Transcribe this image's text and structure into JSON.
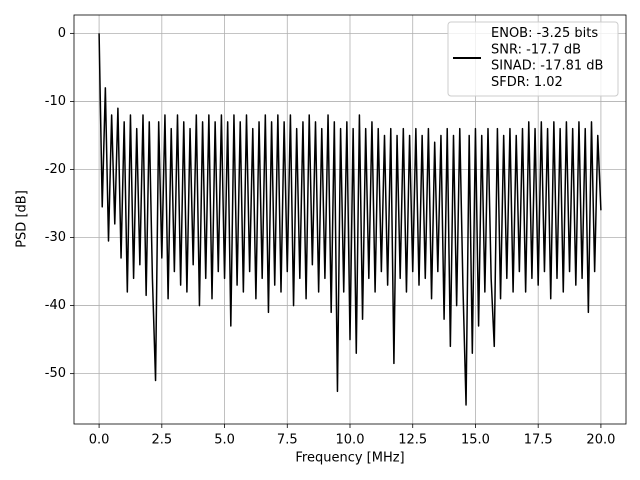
{
  "chart_data": {
    "type": "line",
    "xlabel": "Frequency [MHz]",
    "ylabel": "PSD [dB]",
    "xlim": [
      -1,
      21
    ],
    "ylim": [
      -57.4,
      2.7
    ],
    "xticks": [
      {
        "value": 0,
        "label": "0.0"
      },
      {
        "value": 2.5,
        "label": "2.5"
      },
      {
        "value": 5,
        "label": "5.0"
      },
      {
        "value": 7.5,
        "label": "7.5"
      },
      {
        "value": 10,
        "label": "10.0"
      },
      {
        "value": 12.5,
        "label": "12.5"
      },
      {
        "value": 15,
        "label": "15.0"
      },
      {
        "value": 17.5,
        "label": "17.5"
      },
      {
        "value": 20,
        "label": "20.0"
      }
    ],
    "yticks": [
      -50,
      -40,
      -30,
      -20,
      -10,
      0
    ],
    "grid": true,
    "legend": "upper right",
    "x": [
      0,
      0.125,
      0.25,
      0.375,
      0.5,
      0.625,
      0.75,
      0.875,
      1,
      1.125,
      1.25,
      1.375,
      1.5,
      1.625,
      1.75,
      1.875,
      2,
      2.125,
      2.25,
      2.375,
      2.5,
      2.625,
      2.75,
      2.875,
      3,
      3.125,
      3.25,
      3.375,
      3.5,
      3.625,
      3.75,
      3.875,
      4,
      4.125,
      4.25,
      4.375,
      4.5,
      4.625,
      4.75,
      4.875,
      5,
      5.125,
      5.25,
      5.375,
      5.5,
      5.625,
      5.75,
      5.875,
      6,
      6.125,
      6.25,
      6.375,
      6.5,
      6.625,
      6.75,
      6.875,
      7,
      7.125,
      7.25,
      7.375,
      7.5,
      7.625,
      7.75,
      7.875,
      8,
      8.125,
      8.25,
      8.375,
      8.5,
      8.625,
      8.75,
      8.875,
      9,
      9.125,
      9.25,
      9.375,
      9.5,
      9.625,
      9.75,
      9.875,
      10,
      10.125,
      10.25,
      10.375,
      10.5,
      10.625,
      10.75,
      10.875,
      11,
      11.125,
      11.25,
      11.375,
      11.5,
      11.625,
      11.75,
      11.875,
      12,
      12.125,
      12.25,
      12.375,
      12.5,
      12.625,
      12.75,
      12.875,
      13,
      13.125,
      13.25,
      13.375,
      13.5,
      13.625,
      13.75,
      13.875,
      14,
      14.125,
      14.25,
      14.375,
      14.5,
      14.625,
      14.75,
      14.875,
      15,
      15.125,
      15.25,
      15.375,
      15.5,
      15.625,
      15.75,
      15.875,
      16,
      16.125,
      16.25,
      16.375,
      16.5,
      16.625,
      16.75,
      16.875,
      17,
      17.125,
      17.25,
      17.375,
      17.5,
      17.625,
      17.75,
      17.875,
      18,
      18.125,
      18.25,
      18.375,
      18.5,
      18.625,
      18.75,
      18.875,
      19,
      19.125,
      19.25,
      19.375,
      19.5,
      19.625,
      19.75,
      19.875,
      20
    ],
    "series": [
      {
        "name": "ENOB: -3.25 bits\nSNR: -17.7 dB\nSINAD: -17.81 dB\nSFDR: 1.02",
        "color": "#000000",
        "values": [
          0,
          -25.5,
          -8,
          -30.5,
          -12,
          -28,
          -11,
          -33,
          -13,
          -38,
          -12,
          -36,
          -14,
          -34,
          -12,
          -38.5,
          -13,
          -36,
          -51,
          -13,
          -33,
          -12,
          -39,
          -14,
          -35,
          -12,
          -37,
          -13,
          -38,
          -14,
          -34,
          -12,
          -40,
          -13,
          -36,
          -12,
          -39,
          -13,
          -35,
          -12,
          -36,
          -13,
          -43,
          -12,
          -37,
          -13,
          -38,
          -12,
          -35,
          -14,
          -39,
          -13,
          -36,
          -12,
          -41,
          -13,
          -37,
          -12,
          -38,
          -13,
          -35,
          -12,
          -40,
          -14,
          -36,
          -13,
          -39,
          -12,
          -34,
          -13,
          -38,
          -14,
          -36,
          -12,
          -41,
          -13,
          -52.6,
          -14,
          -38,
          -13,
          -45,
          -14,
          -47,
          -12,
          -42,
          -14,
          -36,
          -13,
          -38,
          -14,
          -35,
          -15,
          -37,
          -14,
          -48.5,
          -15,
          -36,
          -14,
          -38,
          -15,
          -35,
          -14,
          -37,
          -15,
          -36,
          -14,
          -39,
          -16,
          -35,
          -15,
          -42,
          -14,
          -46,
          -15,
          -40,
          -14,
          -37,
          -54.6,
          -15,
          -47,
          -14,
          -43,
          -15,
          -38,
          -14,
          -36,
          -46,
          -14,
          -39,
          -15,
          -36,
          -14,
          -38,
          -15,
          -35,
          -14,
          -38,
          -13,
          -36,
          -14,
          -37,
          -13,
          -35,
          -14,
          -39,
          -13,
          -36,
          -14,
          -38,
          -13,
          -35,
          -14,
          -37,
          -13,
          -36,
          -14,
          -41,
          -13,
          -35,
          -15,
          -26
        ]
      }
    ]
  }
}
